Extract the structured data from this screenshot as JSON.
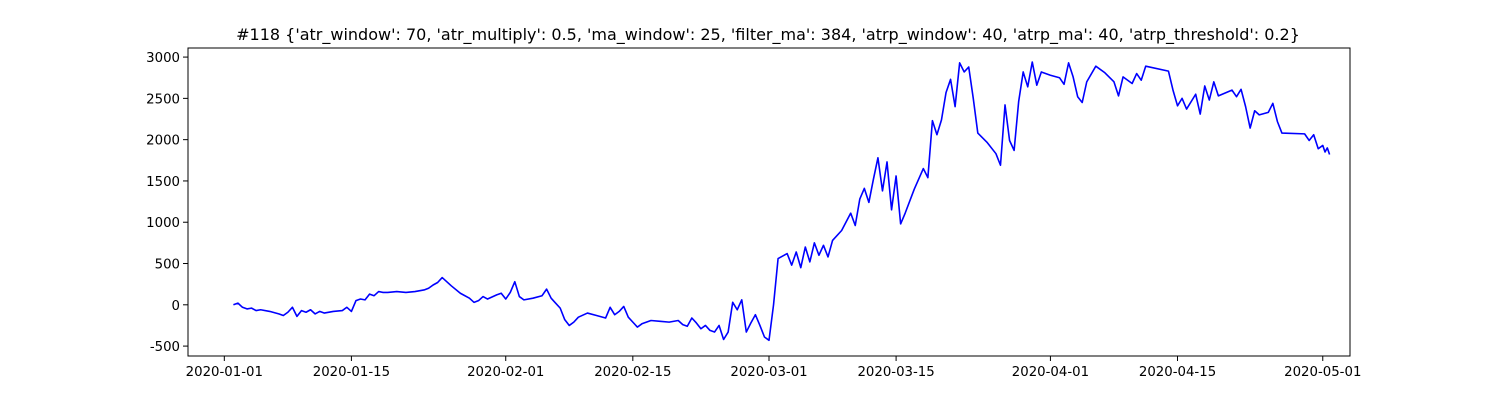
{
  "chart_data": {
    "type": "line",
    "title": "#118 {'atr_window': 70, 'atr_multiply': 0.5, 'ma_window': 25, 'filter_ma': 384, 'atrp_window': 40, 'atrp_ma': 40, 'atrp_threshold': 0.2}",
    "xlabel": "",
    "ylabel": "",
    "x_axis": "date",
    "xlim": [
      "2019-12-28",
      "2020-05-04"
    ],
    "ylim": [
      -620,
      3110
    ],
    "grid": false,
    "x_ticks": [
      "2020-01-01",
      "2020-01-15",
      "2020-02-01",
      "2020-02-15",
      "2020-03-01",
      "2020-03-15",
      "2020-04-01",
      "2020-04-15",
      "2020-05-01"
    ],
    "y_ticks": [
      -500,
      0,
      500,
      1000,
      1500,
      2000,
      2500,
      3000
    ],
    "series": [
      {
        "color": "#0000ff",
        "points": [
          [
            "2020-01-02T00:00",
            0
          ],
          [
            "2020-01-02T12:00",
            20
          ],
          [
            "2020-01-03T00:00",
            -30
          ],
          [
            "2020-01-03T12:00",
            -50
          ],
          [
            "2020-01-04T00:00",
            -40
          ],
          [
            "2020-01-04T12:00",
            -70
          ],
          [
            "2020-01-05T00:00",
            -60
          ],
          [
            "2020-01-06T00:00",
            -80
          ],
          [
            "2020-01-07T00:00",
            -110
          ],
          [
            "2020-01-07T12:00",
            -130
          ],
          [
            "2020-01-08T00:00",
            -90
          ],
          [
            "2020-01-08T12:00",
            -30
          ],
          [
            "2020-01-09T00:00",
            -140
          ],
          [
            "2020-01-09T12:00",
            -70
          ],
          [
            "2020-01-10T00:00",
            -90
          ],
          [
            "2020-01-10T12:00",
            -60
          ],
          [
            "2020-01-11T00:00",
            -110
          ],
          [
            "2020-01-11T12:00",
            -80
          ],
          [
            "2020-01-12T00:00",
            -100
          ],
          [
            "2020-01-13T00:00",
            -80
          ],
          [
            "2020-01-14T00:00",
            -70
          ],
          [
            "2020-01-14T12:00",
            -30
          ],
          [
            "2020-01-15T00:00",
            -80
          ],
          [
            "2020-01-15T12:00",
            50
          ],
          [
            "2020-01-16T00:00",
            70
          ],
          [
            "2020-01-16T12:00",
            60
          ],
          [
            "2020-01-17T00:00",
            130
          ],
          [
            "2020-01-17T12:00",
            110
          ],
          [
            "2020-01-18T00:00",
            160
          ],
          [
            "2020-01-18T12:00",
            150
          ],
          [
            "2020-01-19T00:00",
            150
          ],
          [
            "2020-01-20T00:00",
            160
          ],
          [
            "2020-01-21T00:00",
            150
          ],
          [
            "2020-01-22T00:00",
            160
          ],
          [
            "2020-01-23T00:00",
            180
          ],
          [
            "2020-01-23T12:00",
            200
          ],
          [
            "2020-01-24T00:00",
            240
          ],
          [
            "2020-01-24T12:00",
            270
          ],
          [
            "2020-01-25T00:00",
            330
          ],
          [
            "2020-01-25T12:00",
            280
          ],
          [
            "2020-01-26T00:00",
            230
          ],
          [
            "2020-01-27T00:00",
            140
          ],
          [
            "2020-01-28T00:00",
            80
          ],
          [
            "2020-01-28T12:00",
            30
          ],
          [
            "2020-01-29T00:00",
            50
          ],
          [
            "2020-01-29T12:00",
            100
          ],
          [
            "2020-01-30T00:00",
            70
          ],
          [
            "2020-01-31T00:00",
            120
          ],
          [
            "2020-01-31T12:00",
            140
          ],
          [
            "2020-02-01T00:00",
            70
          ],
          [
            "2020-02-01T12:00",
            150
          ],
          [
            "2020-02-02T00:00",
            280
          ],
          [
            "2020-02-02T12:00",
            100
          ],
          [
            "2020-02-03T00:00",
            60
          ],
          [
            "2020-02-04T00:00",
            80
          ],
          [
            "2020-02-05T00:00",
            110
          ],
          [
            "2020-02-05T12:00",
            190
          ],
          [
            "2020-02-06T00:00",
            80
          ],
          [
            "2020-02-06T12:00",
            20
          ],
          [
            "2020-02-07T00:00",
            -40
          ],
          [
            "2020-02-07T12:00",
            -180
          ],
          [
            "2020-02-08T00:00",
            -250
          ],
          [
            "2020-02-08T12:00",
            -210
          ],
          [
            "2020-02-09T00:00",
            -150
          ],
          [
            "2020-02-10T00:00",
            -100
          ],
          [
            "2020-02-11T00:00",
            -130
          ],
          [
            "2020-02-12T00:00",
            -160
          ],
          [
            "2020-02-12T12:00",
            -30
          ],
          [
            "2020-02-13T00:00",
            -120
          ],
          [
            "2020-02-13T12:00",
            -80
          ],
          [
            "2020-02-14T00:00",
            -20
          ],
          [
            "2020-02-14T12:00",
            -150
          ],
          [
            "2020-02-15T00:00",
            -210
          ],
          [
            "2020-02-15T12:00",
            -270
          ],
          [
            "2020-02-16T00:00",
            -230
          ],
          [
            "2020-02-17T00:00",
            -190
          ],
          [
            "2020-02-18T00:00",
            -200
          ],
          [
            "2020-02-19T00:00",
            -210
          ],
          [
            "2020-02-20T00:00",
            -190
          ],
          [
            "2020-02-20T12:00",
            -240
          ],
          [
            "2020-02-21T00:00",
            -260
          ],
          [
            "2020-02-21T12:00",
            -160
          ],
          [
            "2020-02-22T00:00",
            -220
          ],
          [
            "2020-02-22T12:00",
            -290
          ],
          [
            "2020-02-23T00:00",
            -250
          ],
          [
            "2020-02-23T12:00",
            -310
          ],
          [
            "2020-02-24T00:00",
            -330
          ],
          [
            "2020-02-24T12:00",
            -250
          ],
          [
            "2020-02-25T00:00",
            -420
          ],
          [
            "2020-02-25T12:00",
            -330
          ],
          [
            "2020-02-26T00:00",
            30
          ],
          [
            "2020-02-26T12:00",
            -60
          ],
          [
            "2020-02-27T00:00",
            60
          ],
          [
            "2020-02-27T12:00",
            -330
          ],
          [
            "2020-02-28T00:00",
            -220
          ],
          [
            "2020-02-28T12:00",
            -120
          ],
          [
            "2020-02-29T00:00",
            -250
          ],
          [
            "2020-02-29T12:00",
            -390
          ],
          [
            "2020-03-01T00:00",
            -430
          ],
          [
            "2020-03-01T12:00",
            0
          ],
          [
            "2020-03-02T00:00",
            560
          ],
          [
            "2020-03-03T00:00",
            620
          ],
          [
            "2020-03-03T12:00",
            480
          ],
          [
            "2020-03-04T00:00",
            640
          ],
          [
            "2020-03-04T12:00",
            450
          ],
          [
            "2020-03-05T00:00",
            700
          ],
          [
            "2020-03-05T12:00",
            520
          ],
          [
            "2020-03-06T00:00",
            750
          ],
          [
            "2020-03-06T12:00",
            600
          ],
          [
            "2020-03-07T00:00",
            720
          ],
          [
            "2020-03-07T12:00",
            580
          ],
          [
            "2020-03-08T00:00",
            780
          ],
          [
            "2020-03-09T00:00",
            900
          ],
          [
            "2020-03-10T00:00",
            1110
          ],
          [
            "2020-03-10T12:00",
            960
          ],
          [
            "2020-03-11T00:00",
            1280
          ],
          [
            "2020-03-11T12:00",
            1410
          ],
          [
            "2020-03-12T00:00",
            1240
          ],
          [
            "2020-03-12T12:00",
            1520
          ],
          [
            "2020-03-13T00:00",
            1780
          ],
          [
            "2020-03-13T12:00",
            1380
          ],
          [
            "2020-03-14T00:00",
            1730
          ],
          [
            "2020-03-14T12:00",
            1150
          ],
          [
            "2020-03-15T00:00",
            1560
          ],
          [
            "2020-03-15T12:00",
            980
          ],
          [
            "2020-03-16T00:00",
            1110
          ],
          [
            "2020-03-17T00:00",
            1400
          ],
          [
            "2020-03-18T00:00",
            1650
          ],
          [
            "2020-03-18T12:00",
            1540
          ],
          [
            "2020-03-19T00:00",
            2230
          ],
          [
            "2020-03-19T12:00",
            2060
          ],
          [
            "2020-03-20T00:00",
            2240
          ],
          [
            "2020-03-20T12:00",
            2570
          ],
          [
            "2020-03-21T00:00",
            2730
          ],
          [
            "2020-03-21T12:00",
            2400
          ],
          [
            "2020-03-22T00:00",
            2930
          ],
          [
            "2020-03-22T12:00",
            2820
          ],
          [
            "2020-03-23T00:00",
            2880
          ],
          [
            "2020-03-23T12:00",
            2500
          ],
          [
            "2020-03-24T00:00",
            2080
          ],
          [
            "2020-03-25T00:00",
            1970
          ],
          [
            "2020-03-26T00:00",
            1830
          ],
          [
            "2020-03-26T12:00",
            1690
          ],
          [
            "2020-03-27T00:00",
            2420
          ],
          [
            "2020-03-27T12:00",
            1990
          ],
          [
            "2020-03-28T00:00",
            1870
          ],
          [
            "2020-03-28T12:00",
            2460
          ],
          [
            "2020-03-29T00:00",
            2820
          ],
          [
            "2020-03-29T12:00",
            2640
          ],
          [
            "2020-03-30T00:00",
            2940
          ],
          [
            "2020-03-30T12:00",
            2660
          ],
          [
            "2020-03-31T00:00",
            2820
          ],
          [
            "2020-04-01T00:00",
            2780
          ],
          [
            "2020-04-02T00:00",
            2750
          ],
          [
            "2020-04-02T12:00",
            2670
          ],
          [
            "2020-04-03T00:00",
            2930
          ],
          [
            "2020-04-03T12:00",
            2760
          ],
          [
            "2020-04-04T00:00",
            2520
          ],
          [
            "2020-04-04T12:00",
            2450
          ],
          [
            "2020-04-05T00:00",
            2700
          ],
          [
            "2020-04-06T00:00",
            2890
          ],
          [
            "2020-04-07T00:00",
            2810
          ],
          [
            "2020-04-08T00:00",
            2700
          ],
          [
            "2020-04-08T12:00",
            2530
          ],
          [
            "2020-04-09T00:00",
            2760
          ],
          [
            "2020-04-10T00:00",
            2680
          ],
          [
            "2020-04-10T12:00",
            2800
          ],
          [
            "2020-04-11T00:00",
            2720
          ],
          [
            "2020-04-11T12:00",
            2890
          ],
          [
            "2020-04-14T00:00",
            2830
          ],
          [
            "2020-04-14T12:00",
            2600
          ],
          [
            "2020-04-15T00:00",
            2410
          ],
          [
            "2020-04-15T12:00",
            2500
          ],
          [
            "2020-04-16T00:00",
            2370
          ],
          [
            "2020-04-17T00:00",
            2550
          ],
          [
            "2020-04-17T12:00",
            2310
          ],
          [
            "2020-04-18T00:00",
            2650
          ],
          [
            "2020-04-18T12:00",
            2480
          ],
          [
            "2020-04-19T00:00",
            2700
          ],
          [
            "2020-04-19T12:00",
            2530
          ],
          [
            "2020-04-21T00:00",
            2600
          ],
          [
            "2020-04-21T12:00",
            2520
          ],
          [
            "2020-04-22T00:00",
            2610
          ],
          [
            "2020-04-22T12:00",
            2400
          ],
          [
            "2020-04-23T00:00",
            2140
          ],
          [
            "2020-04-23T12:00",
            2350
          ],
          [
            "2020-04-24T00:00",
            2300
          ],
          [
            "2020-04-25T00:00",
            2330
          ],
          [
            "2020-04-25T12:00",
            2440
          ],
          [
            "2020-04-26T00:00",
            2220
          ],
          [
            "2020-04-26T12:00",
            2080
          ],
          [
            "2020-04-29T00:00",
            2070
          ],
          [
            "2020-04-29T12:00",
            1990
          ],
          [
            "2020-04-30T00:00",
            2060
          ],
          [
            "2020-04-30T12:00",
            1890
          ],
          [
            "2020-05-01T00:00",
            1930
          ],
          [
            "2020-05-01T06:00",
            1850
          ],
          [
            "2020-05-01T12:00",
            1900
          ],
          [
            "2020-05-01T18:00",
            1820
          ]
        ]
      }
    ]
  },
  "colors": {
    "line": "#0000ff",
    "axis": "#000000",
    "background": "#ffffff"
  }
}
